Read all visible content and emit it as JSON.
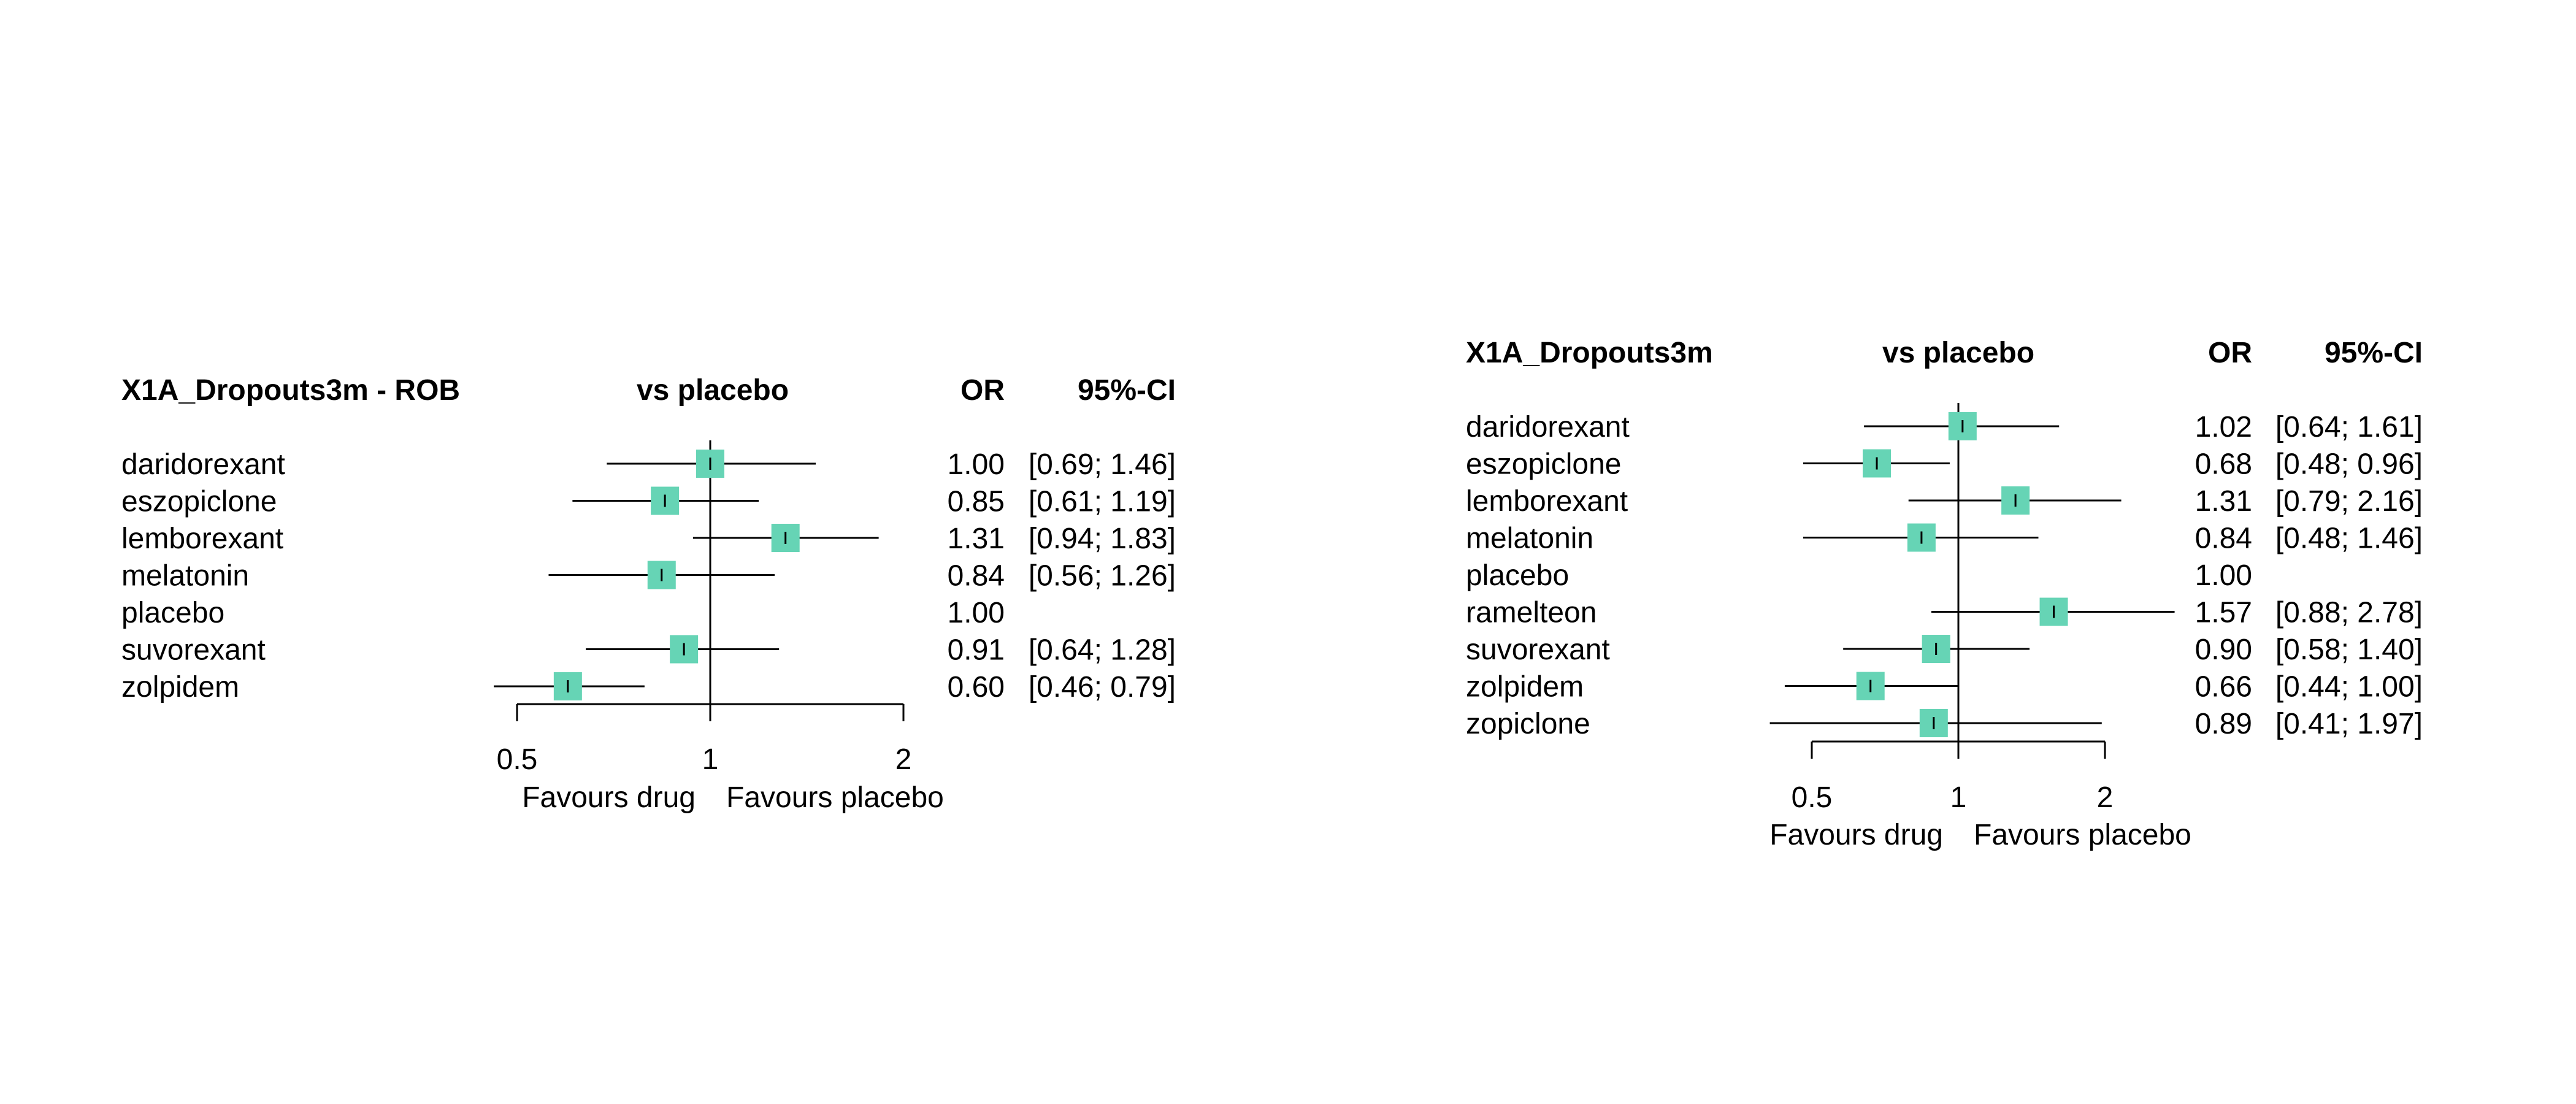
{
  "chart_data": [
    {
      "type": "forest",
      "title": "X1A_Dropouts3m - ROB",
      "comparison_header": "vs placebo",
      "effect_header": "OR",
      "ci_header": "95%-CI",
      "x_scale": "log",
      "xlim": [
        0.5,
        2
      ],
      "x_ticks": [
        "0.5",
        "1",
        "2"
      ],
      "reference_value": 1,
      "left_label": "Favours drug",
      "right_label": "Favours placebo",
      "marker_color": "#66d4b5",
      "rows": [
        {
          "name": "daridorexant",
          "or": 1.0,
          "lower": 0.69,
          "upper": 1.46,
          "or_text": "1.00",
          "ci_text": "[0.69; 1.46]"
        },
        {
          "name": "eszopiclone",
          "or": 0.85,
          "lower": 0.61,
          "upper": 1.19,
          "or_text": "0.85",
          "ci_text": "[0.61; 1.19]"
        },
        {
          "name": "lemborexant",
          "or": 1.31,
          "lower": 0.94,
          "upper": 1.83,
          "or_text": "1.31",
          "ci_text": "[0.94; 1.83]"
        },
        {
          "name": "melatonin",
          "or": 0.84,
          "lower": 0.56,
          "upper": 1.26,
          "or_text": "0.84",
          "ci_text": "[0.56; 1.26]"
        },
        {
          "name": "placebo",
          "or": null,
          "lower": null,
          "upper": null,
          "or_text": "1.00",
          "ci_text": ""
        },
        {
          "name": "suvorexant",
          "or": 0.91,
          "lower": 0.64,
          "upper": 1.28,
          "or_text": "0.91",
          "ci_text": "[0.64; 1.28]"
        },
        {
          "name": "zolpidem",
          "or": 0.6,
          "lower": 0.46,
          "upper": 0.79,
          "or_text": "0.60",
          "ci_text": "[0.46; 0.79]"
        }
      ]
    },
    {
      "type": "forest",
      "title": "X1A_Dropouts3m",
      "comparison_header": "vs placebo",
      "effect_header": "OR",
      "ci_header": "95%-CI",
      "x_scale": "log",
      "xlim": [
        0.5,
        2
      ],
      "x_ticks": [
        "0.5",
        "1",
        "2"
      ],
      "reference_value": 1,
      "left_label": "Favours drug",
      "right_label": "Favours placebo",
      "marker_color": "#66d4b5",
      "rows": [
        {
          "name": "daridorexant",
          "or": 1.02,
          "lower": 0.64,
          "upper": 1.61,
          "or_text": "1.02",
          "ci_text": "[0.64; 1.61]"
        },
        {
          "name": "eszopiclone",
          "or": 0.68,
          "lower": 0.48,
          "upper": 0.96,
          "or_text": "0.68",
          "ci_text": "[0.48; 0.96]"
        },
        {
          "name": "lemborexant",
          "or": 1.31,
          "lower": 0.79,
          "upper": 2.16,
          "or_text": "1.31",
          "ci_text": "[0.79; 2.16]"
        },
        {
          "name": "melatonin",
          "or": 0.84,
          "lower": 0.48,
          "upper": 1.46,
          "or_text": "0.84",
          "ci_text": "[0.48; 1.46]"
        },
        {
          "name": "placebo",
          "or": null,
          "lower": null,
          "upper": null,
          "or_text": "1.00",
          "ci_text": ""
        },
        {
          "name": "ramelteon",
          "or": 1.57,
          "lower": 0.88,
          "upper": 2.78,
          "or_text": "1.57",
          "ci_text": "[0.88; 2.78]"
        },
        {
          "name": "suvorexant",
          "or": 0.9,
          "lower": 0.58,
          "upper": 1.4,
          "or_text": "0.90",
          "ci_text": "[0.58; 1.40]"
        },
        {
          "name": "zolpidem",
          "or": 0.66,
          "lower": 0.44,
          "upper": 1.0,
          "or_text": "0.66",
          "ci_text": "[0.44; 1.00]"
        },
        {
          "name": "zopiclone",
          "or": 0.89,
          "lower": 0.41,
          "upper": 1.97,
          "or_text": "0.89",
          "ci_text": "[0.41; 1.97]"
        }
      ]
    }
  ]
}
